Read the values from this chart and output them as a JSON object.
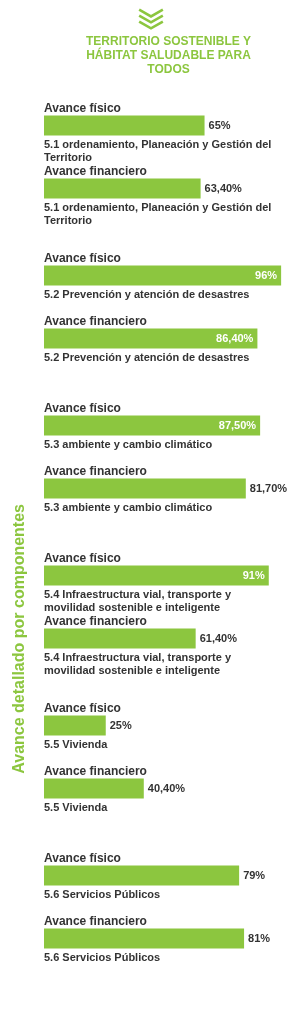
{
  "chart_data": {
    "type": "bar",
    "orientation": "horizontal",
    "title": "TERRITORIO SOSTENIBLE Y HÁBITAT SALUDABLE PARA TODOS",
    "ylabel": "Avance detallado por componentes",
    "categories": [
      "5.1 ordenamiento, Planeación y Gestión del Territorio",
      "5.2 Prevención y atención de desastres",
      "5.3 ambiente y cambio climático",
      "5.4 Infraestructura vial, transporte y movilidad sostenible e inteligente",
      "5.5 Vivienda",
      "5.6 Servicios Públicos"
    ],
    "series": [
      {
        "name": "Avance físico",
        "color": "#8cc63f",
        "values": [
          65,
          96,
          87.5,
          91,
          25,
          79
        ],
        "value_labels": [
          "65%",
          "96%",
          "87,50%",
          "91%",
          "25%",
          "79%"
        ]
      },
      {
        "name": "Avance financiero",
        "color": "#8cc63f",
        "values": [
          63.4,
          86.4,
          81.7,
          61.4,
          40.4,
          81
        ],
        "value_labels": [
          "63,40%",
          "86,40%",
          "81,70%",
          "61,40%",
          "40,40%",
          "81%"
        ]
      }
    ],
    "tick_labels": false
  }
}
